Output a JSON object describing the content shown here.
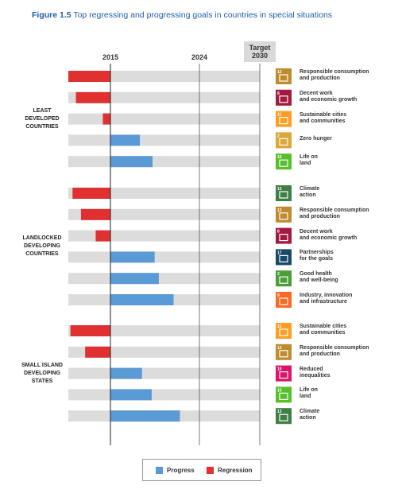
{
  "title": {
    "figure_ref": "Figure 1.5",
    "text": "Top regressing and progressing goals in countries in special situations"
  },
  "chart_data": {
    "type": "bar",
    "orientation": "horizontal",
    "diverging": true,
    "x_axis_ticks": [
      {
        "label": "2015",
        "position": "baseline"
      },
      {
        "label": "2024",
        "position": "current"
      },
      {
        "label": "Target\n2030",
        "position": "target"
      }
    ],
    "xlim": [
      -1,
      3.5
    ],
    "groups": [
      {
        "label": "LEAST\nDEVELOPED\nCOUNTRIES",
        "bars": [
          {
            "goal": 12,
            "label": "Responsible consumption\nand production",
            "value": -1.0,
            "color": "#bf8b2e"
          },
          {
            "goal": 8,
            "label": "Decent work\nand economic growth",
            "value": -0.82,
            "color": "#a21942"
          },
          {
            "goal": 11,
            "label": "Sustainable cities\nand communities",
            "value": -0.18,
            "color": "#fd9d24"
          },
          {
            "goal": 2,
            "label": "Zero hunger",
            "value": 0.7,
            "color": "#dda63a"
          },
          {
            "goal": 15,
            "label": "Life on\nland",
            "value": 1.0,
            "color": "#56c02b"
          }
        ]
      },
      {
        "label": "LANDLOCKED\nDEVELOPING\nCOUNTRIES",
        "bars": [
          {
            "goal": 13,
            "label": "Climate\naction",
            "value": -0.9,
            "color": "#3f7e44"
          },
          {
            "goal": 12,
            "label": "Responsible consumption\nand production",
            "value": -0.7,
            "color": "#bf8b2e"
          },
          {
            "goal": 8,
            "label": "Decent work\nand economic growth",
            "value": -0.35,
            "color": "#a21942"
          },
          {
            "goal": 17,
            "label": "Partnerships\nfor the goals",
            "value": 1.05,
            "color": "#19486a"
          },
          {
            "goal": 3,
            "label": "Good health\nand well-being",
            "value": 1.15,
            "color": "#4c9f38"
          },
          {
            "goal": 9,
            "label": "Industry, innovation\nand infrastructure",
            "value": 1.5,
            "color": "#fd6925"
          }
        ]
      },
      {
        "label": "SMALL ISLAND\nDEVELOPING\nSTATES",
        "bars": [
          {
            "goal": 11,
            "label": "Sustainable cities\nand communities",
            "value": -0.95,
            "color": "#fd9d24"
          },
          {
            "goal": 12,
            "label": "Responsible consumption\nand production",
            "value": -0.6,
            "color": "#bf8b2e"
          },
          {
            "goal": 10,
            "label": "Reduced\ninequalities",
            "value": 0.75,
            "color": "#dd1367"
          },
          {
            "goal": 15,
            "label": "Life on\nland",
            "value": 0.98,
            "color": "#56c02b"
          },
          {
            "goal": 13,
            "label": "Climate\naction",
            "value": 1.65,
            "color": "#3f7e44"
          }
        ]
      }
    ],
    "legend": [
      {
        "name": "Progress",
        "color": "#5b9bd5"
      },
      {
        "name": "Regression",
        "color": "#e03030"
      }
    ],
    "legend_position": "bottom"
  }
}
